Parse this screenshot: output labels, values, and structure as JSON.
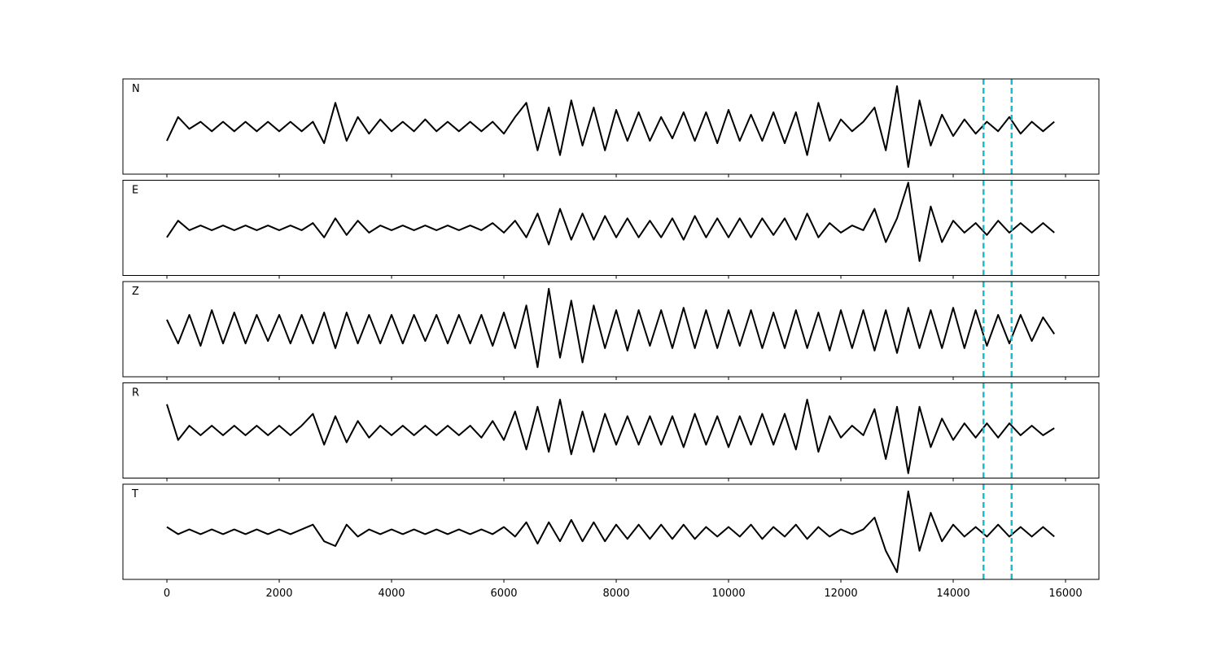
{
  "chart_data": [
    {
      "type": "line",
      "label": "N",
      "xlim": [
        -783,
        16594
      ],
      "xticks": [
        0,
        2000,
        4000,
        6000,
        8000,
        10000,
        12000,
        14000,
        16000
      ],
      "show_xtick_labels": false,
      "ylim": [
        -1,
        1
      ],
      "x": [
        0,
        200,
        400,
        600,
        800,
        1000,
        1200,
        1400,
        1600,
        1800,
        2000,
        2200,
        2400,
        2600,
        2800,
        3000,
        3200,
        3400,
        3600,
        3800,
        4000,
        4200,
        4400,
        4600,
        4800,
        5000,
        5200,
        5400,
        5600,
        5800,
        6000,
        6200,
        6400,
        6600,
        6800,
        7000,
        7200,
        7400,
        7600,
        7800,
        8000,
        8200,
        8400,
        8600,
        8800,
        9000,
        9200,
        9400,
        9600,
        9800,
        10000,
        10200,
        10400,
        10600,
        10800,
        11000,
        11200,
        11400,
        11600,
        11800,
        12000,
        12200,
        12400,
        12600,
        12800,
        13000,
        13200,
        13400,
        13600,
        13800,
        14000,
        14200,
        14400,
        14600,
        14800,
        15000,
        15200,
        15400,
        15600,
        15800
      ],
      "series": [
        {
          "color": "#000000",
          "values": [
            -0.3,
            0.2,
            -0.05,
            0.1,
            -0.1,
            0.1,
            -0.1,
            0.1,
            -0.1,
            0.1,
            -0.1,
            0.1,
            -0.1,
            0.1,
            -0.35,
            0.5,
            -0.3,
            0.2,
            -0.15,
            0.15,
            -0.1,
            0.1,
            -0.1,
            0.15,
            -0.1,
            0.1,
            -0.1,
            0.1,
            -0.1,
            0.1,
            -0.15,
            0.2,
            0.5,
            -0.5,
            0.4,
            -0.6,
            0.55,
            -0.4,
            0.4,
            -0.5,
            0.35,
            -0.3,
            0.3,
            -0.3,
            0.2,
            -0.25,
            0.3,
            -0.3,
            0.3,
            -0.35,
            0.35,
            -0.3,
            0.25,
            -0.3,
            0.3,
            -0.35,
            0.3,
            -0.6,
            0.5,
            -0.3,
            0.15,
            -0.1,
            0.1,
            0.4,
            -0.5,
            0.85,
            -0.85,
            0.55,
            -0.4,
            0.25,
            -0.2,
            0.15,
            -0.15,
            0.1,
            -0.1,
            0.2,
            -0.15,
            0.1,
            -0.1,
            0.1
          ]
        }
      ],
      "vlines": [
        14540,
        15040
      ],
      "vline_color": "#17becf"
    },
    {
      "type": "line",
      "label": "E",
      "xlim": [
        -783,
        16594
      ],
      "xticks": [
        0,
        2000,
        4000,
        6000,
        8000,
        10000,
        12000,
        14000,
        16000
      ],
      "show_xtick_labels": false,
      "ylim": [
        -1,
        1
      ],
      "x": [
        0,
        200,
        400,
        600,
        800,
        1000,
        1200,
        1400,
        1600,
        1800,
        2000,
        2200,
        2400,
        2600,
        2800,
        3000,
        3200,
        3400,
        3600,
        3800,
        4000,
        4200,
        4400,
        4600,
        4800,
        5000,
        5200,
        5400,
        5600,
        5800,
        6000,
        6200,
        6400,
        6600,
        6800,
        7000,
        7200,
        7400,
        7600,
        7800,
        8000,
        8200,
        8400,
        8600,
        8800,
        9000,
        9200,
        9400,
        9600,
        9800,
        10000,
        10200,
        10400,
        10600,
        10800,
        11000,
        11200,
        11400,
        11600,
        11800,
        12000,
        12200,
        12400,
        12600,
        12800,
        13000,
        13200,
        13400,
        13600,
        13800,
        14000,
        14200,
        14400,
        14600,
        14800,
        15000,
        15200,
        15400,
        15600,
        15800
      ],
      "series": [
        {
          "color": "#000000",
          "values": [
            -0.2,
            0.15,
            -0.05,
            0.05,
            -0.05,
            0.05,
            -0.05,
            0.05,
            -0.05,
            0.05,
            -0.05,
            0.05,
            -0.05,
            0.1,
            -0.2,
            0.2,
            -0.15,
            0.15,
            -0.1,
            0.05,
            -0.05,
            0.05,
            -0.05,
            0.05,
            -0.05,
            0.05,
            -0.05,
            0.05,
            -0.05,
            0.1,
            -0.1,
            0.15,
            -0.2,
            0.3,
            -0.35,
            0.4,
            -0.25,
            0.3,
            -0.25,
            0.25,
            -0.2,
            0.2,
            -0.2,
            0.15,
            -0.2,
            0.2,
            -0.25,
            0.25,
            -0.2,
            0.2,
            -0.2,
            0.2,
            -0.2,
            0.2,
            -0.15,
            0.2,
            -0.25,
            0.3,
            -0.2,
            0.1,
            -0.1,
            0.05,
            -0.05,
            0.4,
            -0.3,
            0.2,
            0.95,
            -0.7,
            0.45,
            -0.3,
            0.15,
            -0.1,
            0.1,
            -0.15,
            0.15,
            -0.1,
            0.1,
            -0.1,
            0.1,
            -0.1
          ]
        }
      ],
      "vlines": [
        14540,
        15040
      ],
      "vline_color": "#17becf"
    },
    {
      "type": "line",
      "label": "Z",
      "xlim": [
        -783,
        16594
      ],
      "xticks": [
        0,
        2000,
        4000,
        6000,
        8000,
        10000,
        12000,
        14000,
        16000
      ],
      "show_xtick_labels": false,
      "ylim": [
        -1,
        1
      ],
      "x": [
        0,
        200,
        400,
        600,
        800,
        1000,
        1200,
        1400,
        1600,
        1800,
        2000,
        2200,
        2400,
        2600,
        2800,
        3000,
        3200,
        3400,
        3600,
        3800,
        4000,
        4200,
        4400,
        4600,
        4800,
        5000,
        5200,
        5400,
        5600,
        5800,
        6000,
        6200,
        6400,
        6600,
        6800,
        7000,
        7200,
        7400,
        7600,
        7800,
        8000,
        8200,
        8400,
        8600,
        8800,
        9000,
        9200,
        9400,
        9600,
        9800,
        10000,
        10200,
        10400,
        10600,
        10800,
        11000,
        11200,
        11400,
        11600,
        11800,
        12000,
        12200,
        12400,
        12600,
        12800,
        13000,
        13200,
        13400,
        13600,
        13800,
        14000,
        14200,
        14400,
        14600,
        14800,
        15000,
        15200,
        15400,
        15600,
        15800
      ],
      "series": [
        {
          "color": "#000000",
          "values": [
            0.2,
            -0.3,
            0.3,
            -0.35,
            0.4,
            -0.3,
            0.35,
            -0.3,
            0.3,
            -0.25,
            0.3,
            -0.3,
            0.3,
            -0.3,
            0.35,
            -0.4,
            0.35,
            -0.3,
            0.3,
            -0.3,
            0.3,
            -0.3,
            0.3,
            -0.25,
            0.3,
            -0.3,
            0.3,
            -0.3,
            0.3,
            -0.35,
            0.35,
            -0.4,
            0.5,
            -0.8,
            0.85,
            -0.6,
            0.6,
            -0.7,
            0.5,
            -0.4,
            0.4,
            -0.45,
            0.4,
            -0.35,
            0.4,
            -0.4,
            0.45,
            -0.4,
            0.4,
            -0.4,
            0.4,
            -0.35,
            0.4,
            -0.4,
            0.35,
            -0.4,
            0.4,
            -0.4,
            0.35,
            -0.45,
            0.4,
            -0.4,
            0.4,
            -0.45,
            0.4,
            -0.5,
            0.45,
            -0.4,
            0.4,
            -0.4,
            0.45,
            -0.4,
            0.4,
            -0.35,
            0.3,
            -0.3,
            0.3,
            -0.25,
            0.25,
            -0.1
          ]
        }
      ],
      "vlines": [
        14540,
        15040
      ],
      "vline_color": "#17becf"
    },
    {
      "type": "line",
      "label": "R",
      "xlim": [
        -783,
        16594
      ],
      "xticks": [
        0,
        2000,
        4000,
        6000,
        8000,
        10000,
        12000,
        14000,
        16000
      ],
      "show_xtick_labels": false,
      "ylim": [
        -1,
        1
      ],
      "x": [
        0,
        200,
        400,
        600,
        800,
        1000,
        1200,
        1400,
        1600,
        1800,
        2000,
        2200,
        2400,
        2600,
        2800,
        3000,
        3200,
        3400,
        3600,
        3800,
        4000,
        4200,
        4400,
        4600,
        4800,
        5000,
        5200,
        5400,
        5600,
        5800,
        6000,
        6200,
        6400,
        6600,
        6800,
        7000,
        7200,
        7400,
        7600,
        7800,
        8000,
        8200,
        8400,
        8600,
        8800,
        9000,
        9200,
        9400,
        9600,
        9800,
        10000,
        10200,
        10400,
        10600,
        10800,
        11000,
        11200,
        11400,
        11600,
        11800,
        12000,
        12200,
        12400,
        12600,
        12800,
        13000,
        13200,
        13400,
        13600,
        13800,
        14000,
        14200,
        14400,
        14600,
        14800,
        15000,
        15200,
        15400,
        15600,
        15800
      ],
      "series": [
        {
          "color": "#000000",
          "values": [
            0.55,
            -0.2,
            0.1,
            -0.1,
            0.1,
            -0.1,
            0.1,
            -0.1,
            0.1,
            -0.1,
            0.1,
            -0.1,
            0.1,
            0.35,
            -0.3,
            0.3,
            -0.25,
            0.2,
            -0.15,
            0.1,
            -0.1,
            0.1,
            -0.1,
            0.1,
            -0.1,
            0.1,
            -0.1,
            0.1,
            -0.15,
            0.2,
            -0.2,
            0.4,
            -0.4,
            0.5,
            -0.45,
            0.65,
            -0.5,
            0.4,
            -0.45,
            0.35,
            -0.3,
            0.3,
            -0.3,
            0.3,
            -0.3,
            0.3,
            -0.35,
            0.35,
            -0.3,
            0.3,
            -0.35,
            0.3,
            -0.3,
            0.35,
            -0.3,
            0.35,
            -0.4,
            0.65,
            -0.45,
            0.3,
            -0.15,
            0.1,
            -0.1,
            0.45,
            -0.6,
            0.5,
            -0.9,
            0.5,
            -0.35,
            0.25,
            -0.2,
            0.15,
            -0.15,
            0.15,
            -0.15,
            0.15,
            -0.1,
            0.1,
            -0.1,
            0.05
          ]
        }
      ],
      "vlines": [
        14540,
        15040
      ],
      "vline_color": "#17becf"
    },
    {
      "type": "line",
      "label": "T",
      "xlim": [
        -783,
        16594
      ],
      "xticks": [
        0,
        2000,
        4000,
        6000,
        8000,
        10000,
        12000,
        14000,
        16000
      ],
      "show_xtick_labels": true,
      "ylim": [
        -1,
        1
      ],
      "x": [
        0,
        200,
        400,
        600,
        800,
        1000,
        1200,
        1400,
        1600,
        1800,
        2000,
        2200,
        2400,
        2600,
        2800,
        3000,
        3200,
        3400,
        3600,
        3800,
        4000,
        4200,
        4400,
        4600,
        4800,
        5000,
        5200,
        5400,
        5600,
        5800,
        6000,
        6200,
        6400,
        6600,
        6800,
        7000,
        7200,
        7400,
        7600,
        7800,
        8000,
        8200,
        8400,
        8600,
        8800,
        9000,
        9200,
        9400,
        9600,
        9800,
        10000,
        10200,
        10400,
        10600,
        10800,
        11000,
        11200,
        11400,
        11600,
        11800,
        12000,
        12200,
        12400,
        12600,
        12800,
        13000,
        13200,
        13400,
        13600,
        13800,
        14000,
        14200,
        14400,
        14600,
        14800,
        15000,
        15200,
        15400,
        15600,
        15800
      ],
      "series": [
        {
          "color": "#000000",
          "values": [
            0.1,
            -0.05,
            0.05,
            -0.05,
            0.05,
            -0.05,
            0.05,
            -0.05,
            0.05,
            -0.05,
            0.05,
            -0.05,
            0.05,
            0.15,
            -0.2,
            -0.3,
            0.15,
            -0.1,
            0.05,
            -0.05,
            0.05,
            -0.05,
            0.05,
            -0.05,
            0.05,
            -0.05,
            0.05,
            -0.05,
            0.05,
            -0.05,
            0.1,
            -0.1,
            0.2,
            -0.25,
            0.2,
            -0.2,
            0.25,
            -0.2,
            0.2,
            -0.2,
            0.15,
            -0.15,
            0.15,
            -0.15,
            0.15,
            -0.15,
            0.15,
            -0.15,
            0.1,
            -0.1,
            0.1,
            -0.1,
            0.15,
            -0.15,
            0.1,
            -0.1,
            0.15,
            -0.15,
            0.1,
            -0.1,
            0.05,
            -0.05,
            0.05,
            0.3,
            -0.4,
            -0.85,
            0.85,
            -0.4,
            0.4,
            -0.2,
            0.15,
            -0.1,
            0.1,
            -0.1,
            0.15,
            -0.1,
            0.1,
            -0.1,
            0.1,
            -0.1
          ]
        }
      ],
      "vlines": [
        14540,
        15040
      ],
      "vline_color": "#17becf"
    }
  ]
}
